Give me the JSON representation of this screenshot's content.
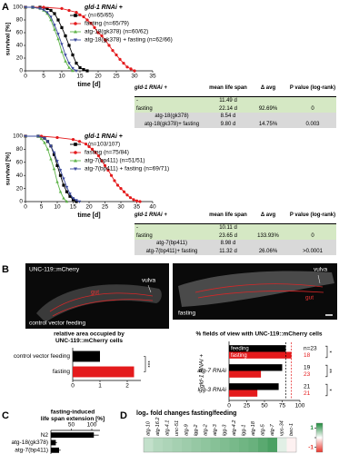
{
  "panel_labels": [
    "A",
    "B",
    "C",
    "D"
  ],
  "chart_data": [
    {
      "type": "line",
      "ylabel": "survival [%]",
      "xlabel": "time [d]",
      "xlim": [
        0,
        35
      ],
      "xticks": [
        0,
        5,
        10,
        15,
        20,
        25,
        30,
        35
      ],
      "ylim": [
        0,
        100
      ],
      "yticks": [
        0,
        20,
        40,
        60,
        80,
        100
      ],
      "legend_title": "gld-1 RNAi +",
      "series": [
        {
          "name": "- (n=65/65)",
          "color": "#000000",
          "marker": "square",
          "x": [
            0,
            2,
            4,
            6,
            7,
            8,
            9,
            10,
            11,
            12,
            13,
            14,
            15,
            16,
            17
          ],
          "values": [
            100,
            100,
            100,
            98,
            95,
            90,
            80,
            68,
            55,
            40,
            25,
            12,
            5,
            2,
            0
          ]
        },
        {
          "name": "fasting (n=65/79)",
          "color": "#e41a1c",
          "marker": "circle",
          "x": [
            0,
            5,
            10,
            12,
            14,
            15,
            16,
            17,
            18,
            19,
            20,
            21,
            22,
            23,
            24,
            25,
            26,
            27,
            28,
            29,
            30
          ],
          "values": [
            100,
            100,
            98,
            95,
            92,
            88,
            85,
            80,
            75,
            68,
            60,
            55,
            48,
            40,
            32,
            25,
            18,
            12,
            6,
            3,
            0
          ]
        },
        {
          "name": "atg-18(gk378) (n=60/62)",
          "color": "#5cb346",
          "marker": "triangle-up",
          "x": [
            0,
            2,
            4,
            5,
            6,
            7,
            8,
            9,
            10,
            11,
            12,
            13
          ],
          "values": [
            100,
            100,
            98,
            95,
            90,
            80,
            65,
            50,
            30,
            15,
            5,
            0
          ]
        },
        {
          "name": "atg-18(gk378) + fasting (n=62/66)",
          "color": "#3b4a9c",
          "marker": "triangle-down",
          "x": [
            0,
            2,
            4,
            5,
            6,
            7,
            8,
            9,
            10,
            11,
            12,
            13,
            14
          ],
          "values": [
            100,
            100,
            98,
            96,
            92,
            85,
            72,
            58,
            42,
            25,
            12,
            4,
            0
          ]
        }
      ]
    },
    {
      "type": "line",
      "ylabel": "survival [%]",
      "xlabel": "time [d]",
      "xlim": [
        0,
        40
      ],
      "xticks": [
        0,
        5,
        10,
        15,
        20,
        25,
        30,
        35,
        40
      ],
      "ylim": [
        0,
        100
      ],
      "yticks": [
        0,
        20,
        40,
        60,
        80,
        100
      ],
      "legend_title": "gld-1 RNAi +",
      "series": [
        {
          "name": "- (n=103/107)",
          "color": "#000000",
          "marker": "square",
          "x": [
            0,
            4,
            6,
            7,
            8,
            9,
            10,
            11,
            12,
            13,
            14,
            15,
            16
          ],
          "values": [
            100,
            100,
            97,
            92,
            85,
            72,
            55,
            40,
            25,
            15,
            8,
            3,
            0
          ]
        },
        {
          "name": "fasting (n=75/84)",
          "color": "#e41a1c",
          "marker": "circle",
          "x": [
            0,
            5,
            10,
            15,
            17,
            19,
            20,
            21,
            22,
            23,
            24,
            25,
            26,
            27,
            28,
            29,
            30,
            31,
            32,
            33,
            34,
            35,
            36
          ],
          "values": [
            100,
            100,
            98,
            95,
            92,
            88,
            84,
            80,
            75,
            70,
            62,
            55,
            48,
            40,
            32,
            25,
            20,
            15,
            10,
            6,
            3,
            1,
            0
          ]
        },
        {
          "name": "atg-7(bp411) (n=51/51)",
          "color": "#5cb346",
          "marker": "triangle-up",
          "x": [
            0,
            4,
            5,
            6,
            7,
            8,
            9,
            10,
            11,
            12,
            13
          ],
          "values": [
            100,
            100,
            96,
            90,
            80,
            65,
            50,
            30,
            15,
            5,
            0
          ]
        },
        {
          "name": "atg-7(bp411) + fasting (n=69/71)",
          "color": "#3b4a9c",
          "marker": "triangle-down",
          "x": [
            0,
            4,
            6,
            7,
            8,
            9,
            10,
            11,
            12,
            13,
            14,
            15,
            16,
            17
          ],
          "values": [
            100,
            100,
            97,
            92,
            85,
            75,
            62,
            48,
            35,
            22,
            12,
            5,
            2,
            0
          ]
        }
      ]
    },
    {
      "type": "hbar",
      "title": [
        "relative area occupied by",
        "UNC-119::mCherry cells"
      ],
      "categories": [
        "control vector feeding",
        "fasting"
      ],
      "values": [
        1,
        2.25
      ],
      "colors": [
        "#000000",
        "#e41a1c"
      ],
      "xlim": [
        0,
        2.5
      ],
      "xticks": [
        0,
        1,
        2
      ],
      "annotations": [
        "***"
      ]
    },
    {
      "type": "hbar",
      "title": "% fields of view with UNC-119::mCherry cells",
      "group_label": "gld-1 RNAi +",
      "categories": [
        null,
        "atg-7 RNAi",
        "lgg-3 RNAi"
      ],
      "series": [
        {
          "name": "feeding",
          "color": "#000000",
          "values": [
            80,
            75,
            70
          ],
          "n_labels": [
            "n=23",
            "19",
            "21"
          ]
        },
        {
          "name": "fasting",
          "color": "#e41a1c",
          "values": [
            88,
            45,
            40
          ],
          "n_labels": [
            "18",
            "23",
            "21"
          ]
        }
      ],
      "xlim": [
        0,
        100
      ],
      "xticks": [
        0,
        25,
        50,
        75,
        100
      ],
      "reference_lines": true,
      "annotations": [
        "*",
        "**",
        "*"
      ]
    },
    {
      "type": "hbar",
      "title": [
        "fasting-induced",
        "life span extension [%]"
      ],
      "categories": [
        "N2",
        "atg-18(gk378)",
        "atg-7(bp411)"
      ],
      "values": [
        105,
        12,
        20
      ],
      "errors": [
        12,
        3,
        4
      ],
      "color": "#000000",
      "xlim": [
        0,
        120
      ],
      "xticks": [
        50,
        100
      ],
      "axis_top": true
    },
    {
      "type": "heatmap",
      "title": "log₂ fold changes fasting/feeding",
      "categories": [
        "atg-10",
        "atg-16.2",
        "atg-4.1",
        "unc-51",
        "atg-9",
        "lgg-2",
        "atg-2",
        "atg-3",
        "lgg-3",
        "atg-4.2",
        "lgg-1",
        "atg-18",
        "atg-5",
        "atg-7",
        "vps-34",
        "bec-1"
      ],
      "values": [
        0.4,
        0.5,
        0.55,
        0.6,
        0.65,
        0.7,
        0.75,
        0.8,
        0.85,
        0.9,
        0.95,
        1.0,
        1.1,
        1.2,
        0.2,
        -0.1
      ],
      "clim": [
        -1.5,
        1.5
      ],
      "cticks": [
        1,
        0,
        -1
      ],
      "colors": [
        "#e8342a",
        "#ffffff",
        "#1e8a3c"
      ]
    }
  ],
  "tables": [
    {
      "header": [
        "gld-1 RNAi +",
        "mean life span",
        "Δ avg",
        "P value (log-rank)"
      ],
      "rows": [
        [
          "-",
          "11.49 d",
          null,
          null
        ],
        [
          "fasting",
          "22.14 d",
          "92.69%",
          "0"
        ],
        [
          "atg-18(gk378)",
          "8.54 d",
          null,
          null
        ],
        [
          "atg-18(gk378)+ fasting",
          "9.80 d",
          "14.75%",
          "0.003"
        ]
      ]
    },
    {
      "header": [
        "gld-1 RNAi +",
        "mean life span",
        "Δ avg",
        "P value (log-rank)"
      ],
      "rows": [
        [
          "-",
          "10.11 d",
          null,
          null
        ],
        [
          "fasting",
          "23.65 d",
          "133.93%",
          "0"
        ],
        [
          "atg-7(bp411)",
          "8.98 d",
          null,
          null
        ],
        [
          "atg-7(bp411)+ fasting",
          "11.32 d",
          "26.06%",
          ">0.0001"
        ]
      ]
    }
  ],
  "images": [
    {
      "labels": [
        "UNC-119::mCherry",
        "vulva",
        "gut",
        "control vector feeding"
      ]
    },
    {
      "labels": [
        "vulva",
        "gut",
        "fasting"
      ]
    }
  ]
}
